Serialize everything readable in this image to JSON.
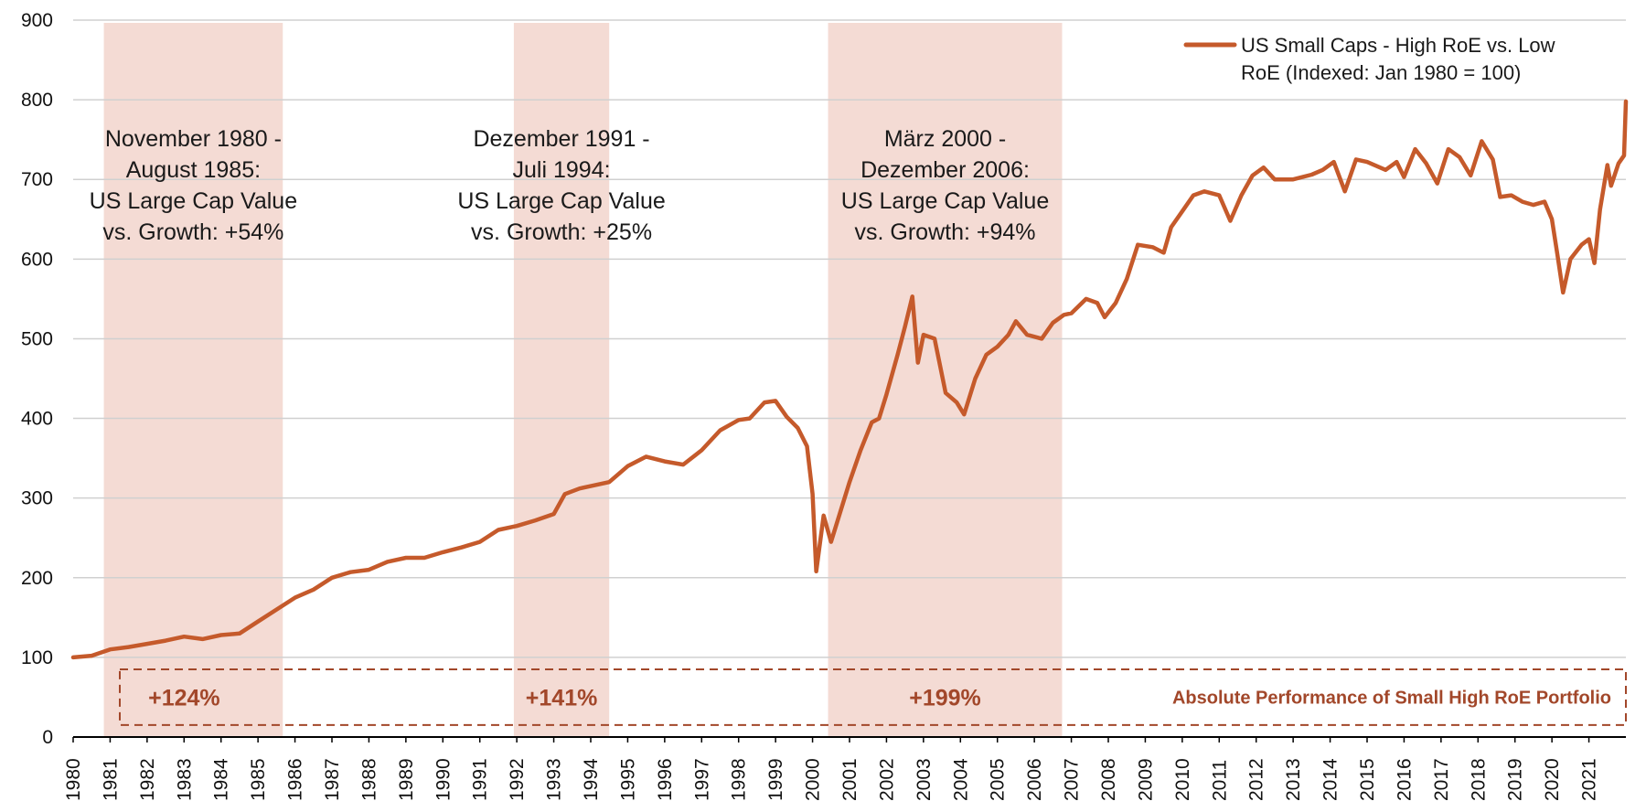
{
  "chart_data": {
    "type": "line",
    "title": "",
    "xlabel": "",
    "ylabel": "",
    "xlim": [
      1980,
      2022
    ],
    "ylim": [
      0,
      900
    ],
    "y_ticks": [
      0,
      100,
      200,
      300,
      400,
      500,
      600,
      700,
      800,
      900
    ],
    "x_tick_labels": [
      "1980",
      "1981",
      "1982",
      "1983",
      "1984",
      "1985",
      "1986",
      "1987",
      "1988",
      "1989",
      "1990",
      "1991",
      "1992",
      "1993",
      "1994",
      "1995",
      "1996",
      "1997",
      "1998",
      "1999",
      "2000",
      "2001",
      "2002",
      "2003",
      "2004",
      "2005",
      "2006",
      "2007",
      "2008",
      "2009",
      "2010",
      "2011",
      "2012",
      "2013",
      "2014",
      "2015",
      "2016",
      "2017",
      "2018",
      "2019",
      "2020",
      "2021"
    ],
    "grid": "horizontal",
    "legend_position": "top-right",
    "line_color": "#c55a2b",
    "shade_color": "#f4dbd4",
    "perf_color": "#a2472a",
    "series": [
      {
        "name": "US Small Caps - High RoE vs. Low RoE (Indexed: Jan 1980 = 100)",
        "points": [
          [
            1980.0,
            100
          ],
          [
            1980.5,
            102
          ],
          [
            1981.0,
            110
          ],
          [
            1981.5,
            113
          ],
          [
            1982.0,
            117
          ],
          [
            1982.5,
            121
          ],
          [
            1983.0,
            126
          ],
          [
            1983.5,
            123
          ],
          [
            1984.0,
            128
          ],
          [
            1984.5,
            130
          ],
          [
            1985.0,
            145
          ],
          [
            1985.5,
            160
          ],
          [
            1986.0,
            175
          ],
          [
            1986.5,
            185
          ],
          [
            1987.0,
            200
          ],
          [
            1987.5,
            207
          ],
          [
            1988.0,
            210
          ],
          [
            1988.5,
            220
          ],
          [
            1989.0,
            225
          ],
          [
            1989.5,
            225
          ],
          [
            1990.0,
            232
          ],
          [
            1990.5,
            238
          ],
          [
            1991.0,
            245
          ],
          [
            1991.5,
            260
          ],
          [
            1992.0,
            265
          ],
          [
            1992.5,
            272
          ],
          [
            1993.0,
            280
          ],
          [
            1993.3,
            305
          ],
          [
            1993.7,
            312
          ],
          [
            1994.0,
            315
          ],
          [
            1994.5,
            320
          ],
          [
            1995.0,
            340
          ],
          [
            1995.5,
            352
          ],
          [
            1996.0,
            346
          ],
          [
            1996.5,
            342
          ],
          [
            1997.0,
            360
          ],
          [
            1997.5,
            385
          ],
          [
            1998.0,
            398
          ],
          [
            1998.3,
            400
          ],
          [
            1998.7,
            420
          ],
          [
            1999.0,
            422
          ],
          [
            1999.3,
            402
          ],
          [
            1999.6,
            388
          ],
          [
            1999.85,
            365
          ],
          [
            2000.0,
            305
          ],
          [
            2000.1,
            208
          ],
          [
            2000.3,
            278
          ],
          [
            2000.5,
            245
          ],
          [
            2000.8,
            290
          ],
          [
            2001.0,
            320
          ],
          [
            2001.3,
            360
          ],
          [
            2001.6,
            395
          ],
          [
            2001.8,
            400
          ],
          [
            2002.0,
            430
          ],
          [
            2002.3,
            480
          ],
          [
            2002.5,
            515
          ],
          [
            2002.7,
            553
          ],
          [
            2002.85,
            470
          ],
          [
            2003.0,
            505
          ],
          [
            2003.3,
            500
          ],
          [
            2003.6,
            432
          ],
          [
            2003.9,
            420
          ],
          [
            2004.1,
            405
          ],
          [
            2004.4,
            450
          ],
          [
            2004.7,
            480
          ],
          [
            2005.0,
            490
          ],
          [
            2005.3,
            505
          ],
          [
            2005.5,
            522
          ],
          [
            2005.8,
            505
          ],
          [
            2006.2,
            500
          ],
          [
            2006.5,
            520
          ],
          [
            2006.8,
            530
          ],
          [
            2007.0,
            532
          ],
          [
            2007.4,
            550
          ],
          [
            2007.7,
            545
          ],
          [
            2007.9,
            527
          ],
          [
            2008.2,
            545
          ],
          [
            2008.5,
            575
          ],
          [
            2008.8,
            618
          ],
          [
            2009.2,
            615
          ],
          [
            2009.5,
            608
          ],
          [
            2009.7,
            640
          ],
          [
            2010.0,
            660
          ],
          [
            2010.3,
            680
          ],
          [
            2010.6,
            685
          ],
          [
            2011.0,
            680
          ],
          [
            2011.3,
            648
          ],
          [
            2011.6,
            680
          ],
          [
            2011.9,
            705
          ],
          [
            2012.2,
            715
          ],
          [
            2012.5,
            700
          ],
          [
            2013.0,
            700
          ],
          [
            2013.5,
            706
          ],
          [
            2013.8,
            712
          ],
          [
            2014.1,
            722
          ],
          [
            2014.4,
            685
          ],
          [
            2014.7,
            725
          ],
          [
            2015.0,
            722
          ],
          [
            2015.5,
            712
          ],
          [
            2015.8,
            722
          ],
          [
            2016.0,
            703
          ],
          [
            2016.3,
            738
          ],
          [
            2016.6,
            720
          ],
          [
            2016.9,
            695
          ],
          [
            2017.2,
            738
          ],
          [
            2017.5,
            728
          ],
          [
            2017.8,
            705
          ],
          [
            2018.1,
            748
          ],
          [
            2018.4,
            725
          ],
          [
            2018.6,
            678
          ],
          [
            2018.9,
            680
          ],
          [
            2019.2,
            672
          ],
          [
            2019.5,
            668
          ],
          [
            2019.8,
            672
          ],
          [
            2020.0,
            650
          ],
          [
            2020.15,
            605
          ],
          [
            2020.3,
            558
          ],
          [
            2020.5,
            600
          ],
          [
            2020.8,
            618
          ],
          [
            2021.0,
            625
          ],
          [
            2021.15,
            595
          ],
          [
            2021.3,
            662
          ],
          [
            2021.5,
            718
          ],
          [
            2021.6,
            692
          ],
          [
            2021.8,
            720
          ],
          [
            2021.95,
            730
          ],
          [
            2022.0,
            798
          ]
        ]
      }
    ],
    "shaded_periods": [
      {
        "start": 1980.83,
        "end": 1985.67,
        "label_lines": [
          "November 1980 -",
          "August 1985:",
          "US Large Cap Value",
          "vs. Growth: +54%"
        ],
        "performance": "+124%"
      },
      {
        "start": 1991.92,
        "end": 1994.5,
        "label_lines": [
          "Dezember 1991 -",
          "Juli 1994:",
          "US Large Cap Value",
          "vs. Growth: +25%"
        ],
        "performance": "+141%"
      },
      {
        "start": 2000.42,
        "end": 2006.75,
        "label_lines": [
          "März 2000 -",
          "Dezember 2006:",
          "US Large Cap Value",
          "vs. Growth: +94%"
        ],
        "performance": "+199%"
      }
    ],
    "performance_box_label": "Absolute Performance of Small High RoE Portfolio",
    "legend_lines": [
      "US Small Caps - High RoE vs. Low",
      "RoE (Indexed: Jan 1980 = 100)"
    ]
  }
}
